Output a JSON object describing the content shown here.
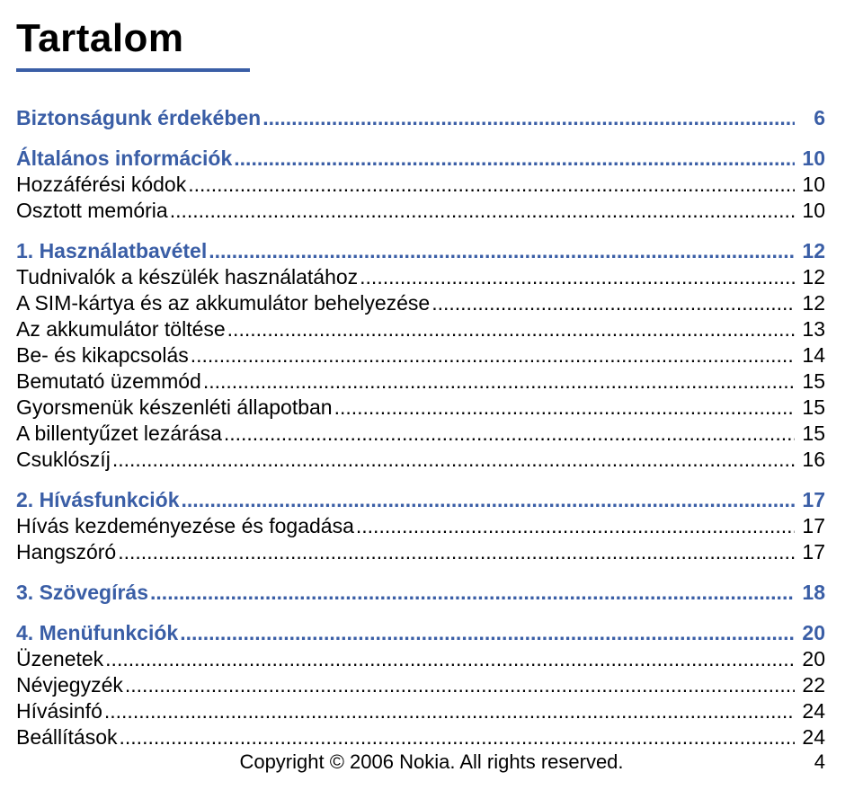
{
  "title": "Tartalom",
  "rule_color": "#3a5ea6",
  "accent_color": "#3a5ea6",
  "text_color": "#000000",
  "background_color": "#ffffff",
  "title_fontsize": 44,
  "body_fontsize": 23,
  "toc": [
    {
      "label": "Biztonságunk érdekében",
      "page": "6",
      "bold": true,
      "section": true
    },
    {
      "label": "Általános információk",
      "page": "10",
      "bold": true,
      "section": true
    },
    {
      "label": "Hozzáférési kódok",
      "page": "10",
      "bold": false
    },
    {
      "label": "Osztott memória",
      "page": "10",
      "bold": false
    },
    {
      "label": "1. Használatbavétel",
      "page": "12",
      "bold": true,
      "section": true
    },
    {
      "label": "Tudnivalók a készülék használatához",
      "page": "12",
      "bold": false
    },
    {
      "label": "A SIM-kártya és az akkumulátor behelyezése",
      "page": "12",
      "bold": false
    },
    {
      "label": "Az akkumulátor töltése",
      "page": "13",
      "bold": false
    },
    {
      "label": "Be- és kikapcsolás",
      "page": "14",
      "bold": false
    },
    {
      "label": "Bemutató üzemmód",
      "page": "15",
      "bold": false
    },
    {
      "label": "Gyorsmenük készenléti állapotban",
      "page": "15",
      "bold": false
    },
    {
      "label": "A billentyűzet lezárása",
      "page": "15",
      "bold": false
    },
    {
      "label": "Csuklószíj",
      "page": "16",
      "bold": false
    },
    {
      "label": "2. Hívásfunkciók",
      "page": "17",
      "bold": true,
      "section": true
    },
    {
      "label": "Hívás kezdeményezése és fogadása",
      "page": "17",
      "bold": false
    },
    {
      "label": "Hangszóró",
      "page": "17",
      "bold": false
    },
    {
      "label": "3. Szövegírás",
      "page": "18",
      "bold": true,
      "section": true
    },
    {
      "label": "4. Menüfunkciók",
      "page": "20",
      "bold": true,
      "section": true
    },
    {
      "label": "Üzenetek",
      "page": "20",
      "bold": false
    },
    {
      "label": "Névjegyzék",
      "page": "22",
      "bold": false
    },
    {
      "label": "Hívásinfó",
      "page": "24",
      "bold": false
    },
    {
      "label": "Beállítások",
      "page": "24",
      "bold": false
    }
  ],
  "footer": {
    "copyright": "Copyright © 2006 Nokia. All rights reserved.",
    "page_number": "4"
  }
}
